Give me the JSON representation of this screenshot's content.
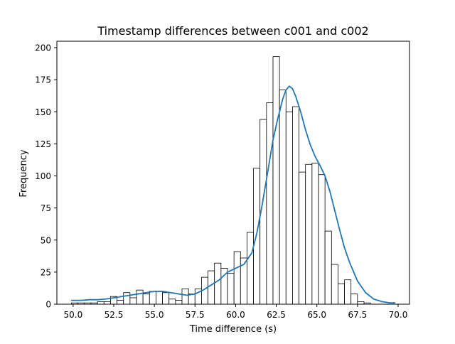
{
  "colors": {
    "kde_line": "#1f77b4",
    "bar_fill": "#ffffff",
    "bar_edge": "#000000",
    "axes": "#000000"
  },
  "chart_data": {
    "type": "bar",
    "subtype": "histogram_with_kde",
    "title": "Timestamp differences between c001 and c002",
    "xlabel": "Time difference (s)",
    "ylabel": "Frequency",
    "xlim": [
      49.0,
      70.7
    ],
    "ylim": [
      0,
      205
    ],
    "grid": false,
    "legend": "none",
    "xticks": [
      50.0,
      52.5,
      55.0,
      57.5,
      60.0,
      62.5,
      65.0,
      67.5,
      70.0
    ],
    "xtick_labels": [
      "50.0",
      "52.5",
      "55.0",
      "57.5",
      "60.0",
      "62.5",
      "65.0",
      "67.5",
      "70.0"
    ],
    "yticks": [
      0,
      25,
      50,
      75,
      100,
      125,
      150,
      175,
      200
    ],
    "ytick_labels": [
      "0",
      "25",
      "50",
      "75",
      "100",
      "125",
      "150",
      "175",
      "200"
    ],
    "bin_edges": [
      49.9,
      50.3,
      50.7,
      51.1,
      51.5,
      51.9,
      52.3,
      52.7,
      53.1,
      53.5,
      53.9,
      54.3,
      54.7,
      55.1,
      55.5,
      55.9,
      56.3,
      56.7,
      57.1,
      57.5,
      57.9,
      58.3,
      58.7,
      59.1,
      59.5,
      59.9,
      60.3,
      60.7,
      61.1,
      61.5,
      61.9,
      62.3,
      62.7,
      63.1,
      63.5,
      63.9,
      64.3,
      64.7,
      65.1,
      65.5,
      65.9,
      66.3,
      66.7,
      67.1,
      67.5,
      67.9,
      68.3,
      68.7,
      69.1,
      69.5
    ],
    "counts": [
      1,
      1,
      1,
      1,
      2,
      2,
      6,
      3,
      9,
      5,
      11,
      8,
      10,
      10,
      9,
      4,
      3,
      12,
      8,
      12,
      21,
      26,
      32,
      28,
      24,
      41,
      36,
      56,
      106,
      144,
      157,
      193,
      167,
      150,
      154,
      103,
      109,
      110,
      101,
      57,
      31,
      16,
      19,
      8,
      2,
      1,
      0,
      0,
      0
    ],
    "kde": {
      "x": [
        49.9,
        50.5,
        51.0,
        51.5,
        52.0,
        52.5,
        53.0,
        53.5,
        54.0,
        54.5,
        55.0,
        55.5,
        56.0,
        56.5,
        57.0,
        57.5,
        58.0,
        58.5,
        59.0,
        59.5,
        60.0,
        60.5,
        61.0,
        61.3,
        61.6,
        62.0,
        62.3,
        62.6,
        62.9,
        63.1,
        63.3,
        63.5,
        63.7,
        64.0,
        64.3,
        64.6,
        64.9,
        65.2,
        65.5,
        65.8,
        66.1,
        66.4,
        66.7,
        67.0,
        67.5,
        68.0,
        68.5,
        69.0,
        69.5,
        69.8
      ],
      "y": [
        3,
        3,
        3.5,
        3.5,
        4,
        5,
        6,
        7,
        8,
        9,
        10,
        10,
        9,
        8,
        7,
        8,
        11,
        15,
        19,
        25,
        28,
        31,
        40,
        55,
        75,
        105,
        128,
        145,
        160,
        167,
        170,
        168,
        162,
        150,
        136,
        124,
        115,
        108,
        100,
        88,
        73,
        58,
        44,
        33,
        18,
        9,
        4,
        2,
        1,
        1
      ]
    }
  }
}
